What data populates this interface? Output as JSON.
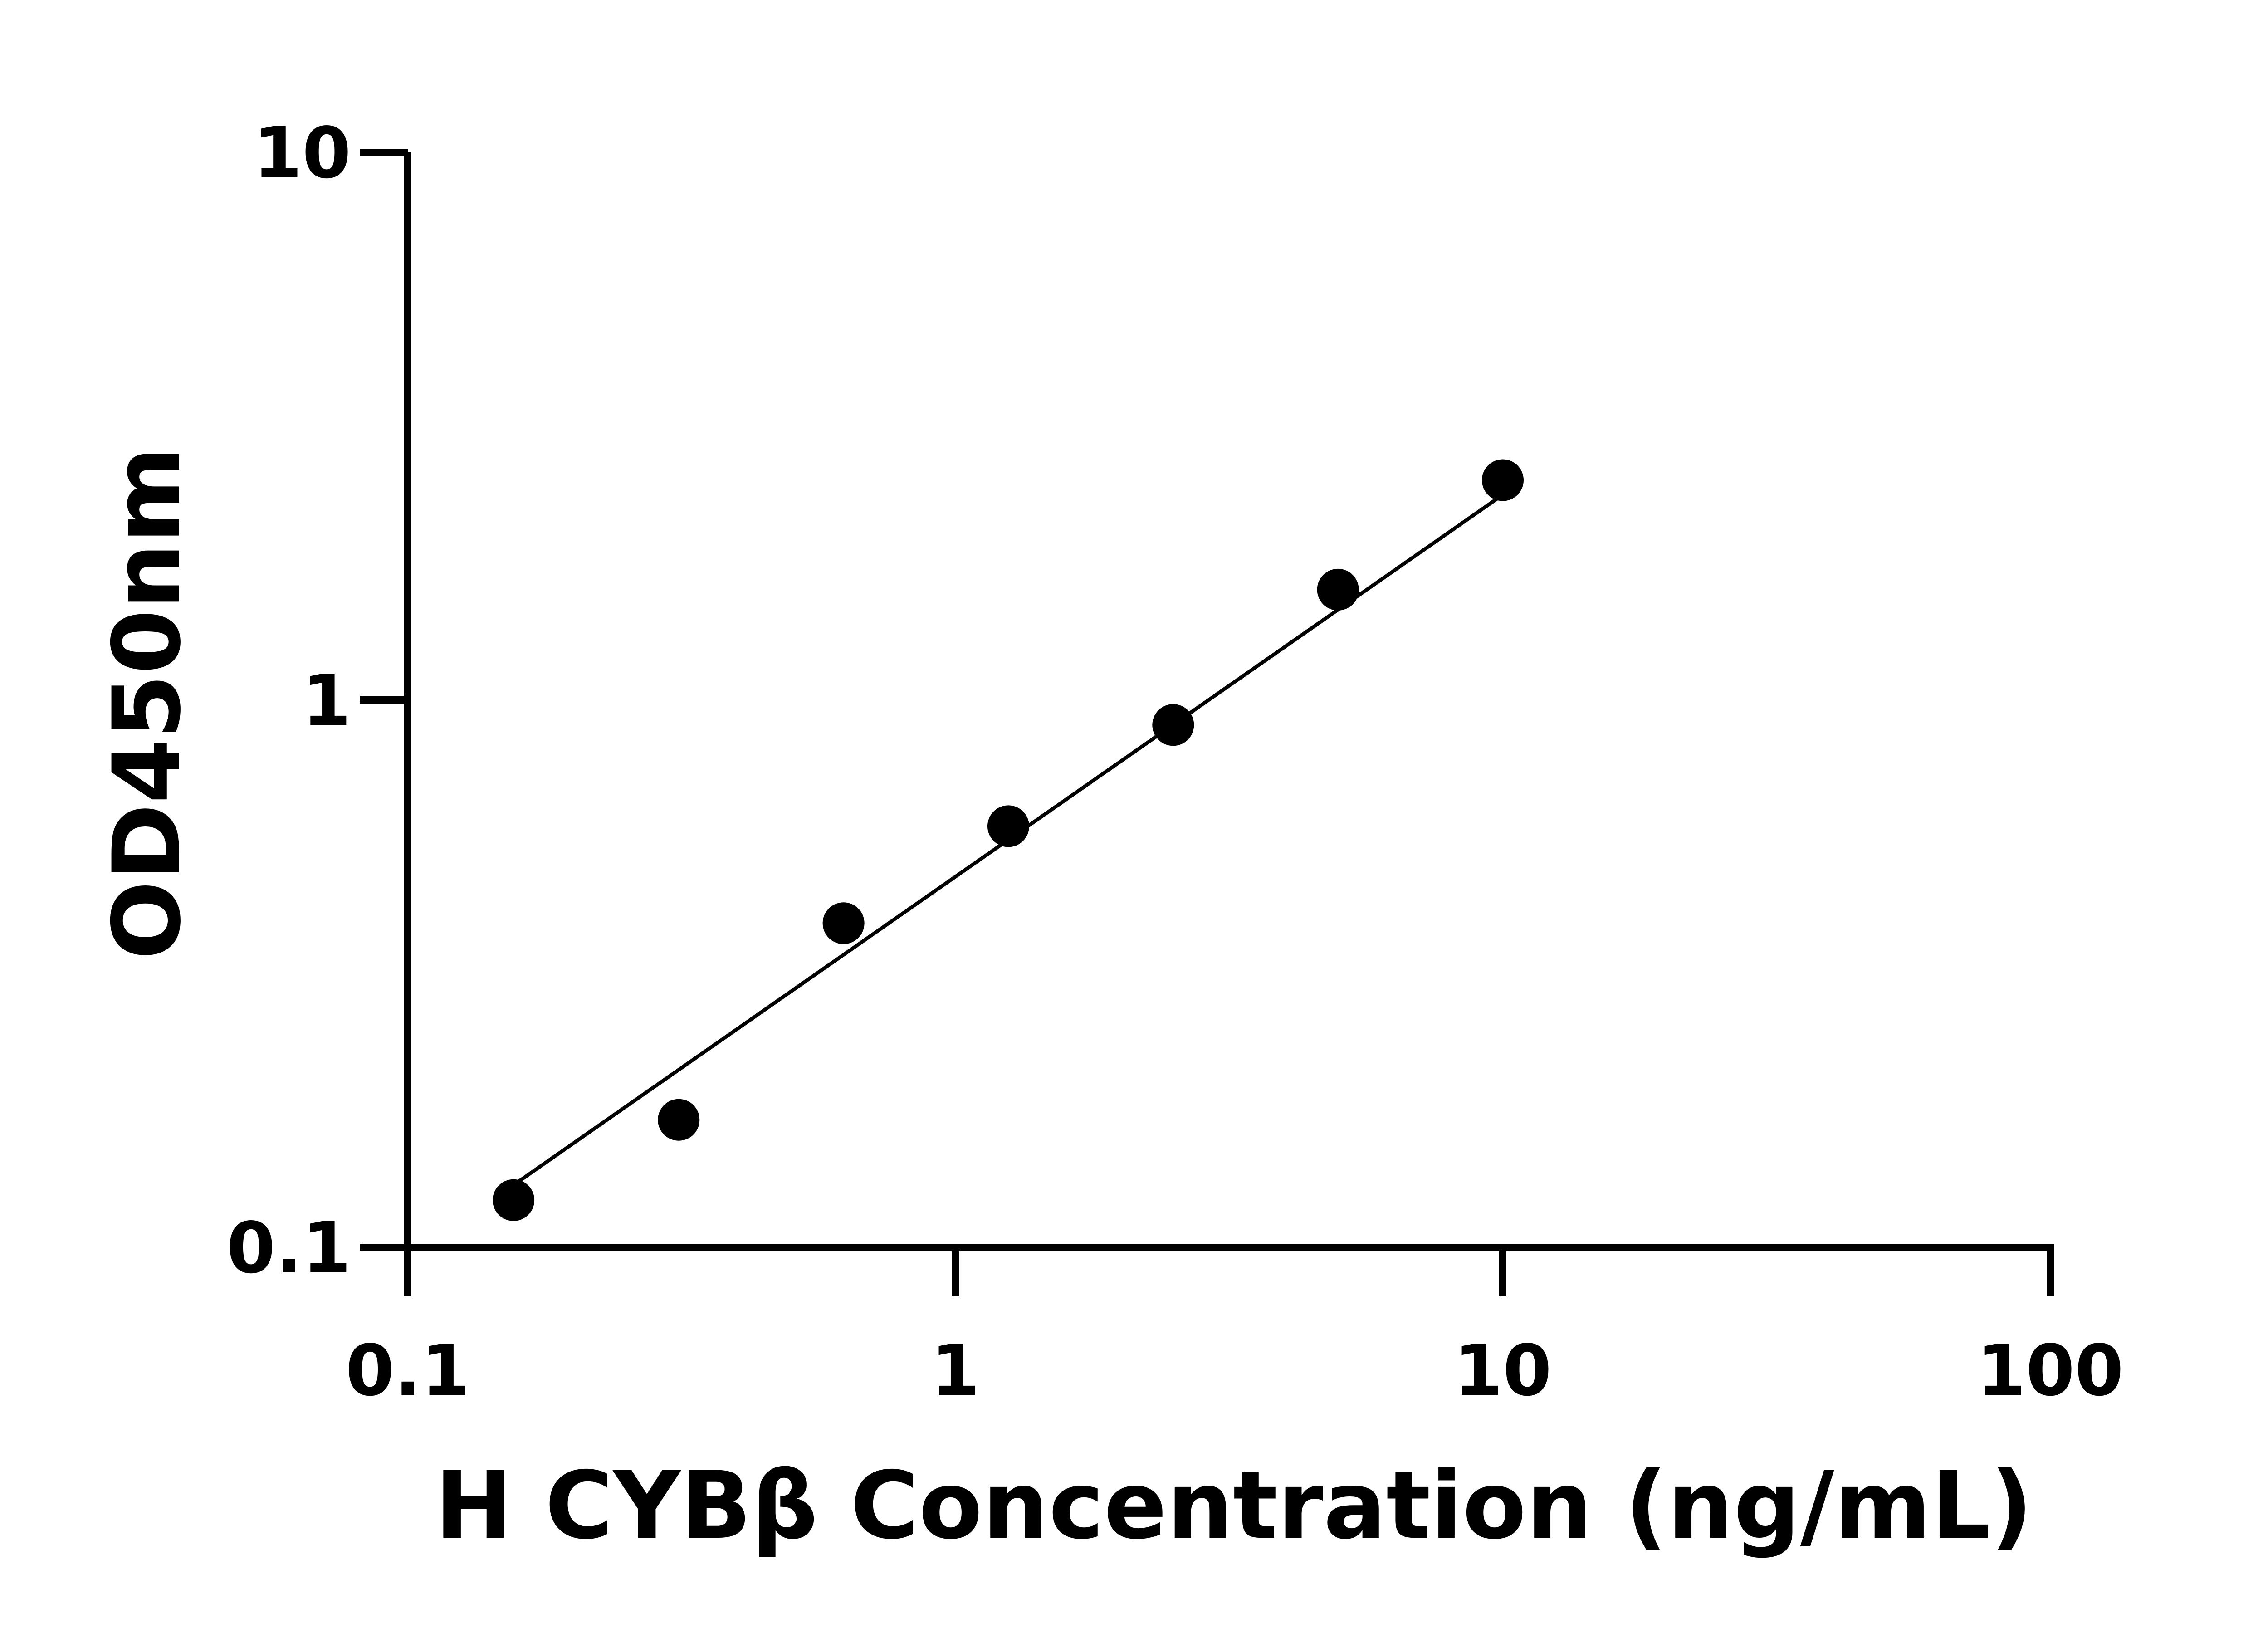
{
  "chart_data": {
    "type": "scatter",
    "title": "",
    "xlabel": "H CYBβ Concentration (ng/mL)",
    "ylabel": "OD450nm",
    "x_scale": "log",
    "y_scale": "log",
    "xlim": [
      0.1,
      100
    ],
    "ylim": [
      0.1,
      10
    ],
    "x_ticks": [
      {
        "value": 0.1,
        "label": "0.1"
      },
      {
        "value": 1,
        "label": "1"
      },
      {
        "value": 10,
        "label": "10"
      },
      {
        "value": 100,
        "label": "100"
      }
    ],
    "y_ticks": [
      {
        "value": 0.1,
        "label": "0.1"
      },
      {
        "value": 1,
        "label": "1"
      },
      {
        "value": 10,
        "label": "10"
      }
    ],
    "grid": false,
    "series": [
      {
        "points": [
          {
            "x": 0.156,
            "y": 0.122
          },
          {
            "x": 0.3125,
            "y": 0.171
          },
          {
            "x": 0.625,
            "y": 0.391
          },
          {
            "x": 1.25,
            "y": 0.588
          },
          {
            "x": 2.5,
            "y": 0.9
          },
          {
            "x": 5,
            "y": 1.59
          },
          {
            "x": 10,
            "y": 2.52
          }
        ],
        "color": "#000000"
      }
    ],
    "fit_line": {
      "x": [
        0.156,
        10
      ],
      "y": [
        0.13,
        2.37
      ],
      "color": "#000000"
    }
  }
}
